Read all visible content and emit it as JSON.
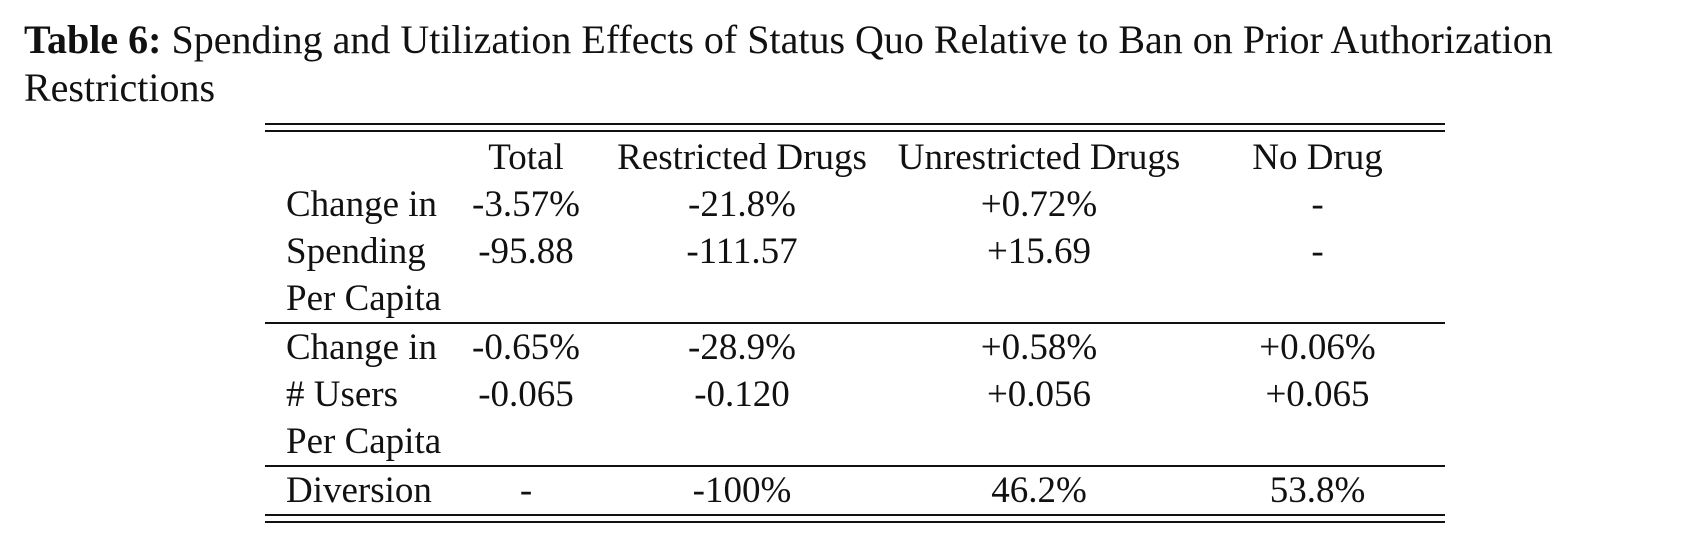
{
  "caption": {
    "label": "Table 6:",
    "text": "Spending and Utilization Effects of Status Quo Relative to Ban on Prior Authorization Restrictions"
  },
  "table": {
    "columns": [
      "",
      "Total",
      "Restricted Drugs",
      "Unrestricted Drugs",
      "No Drug"
    ],
    "rows": [
      {
        "label": "Change in",
        "cells": [
          "-3.57%",
          "-21.8%",
          "+0.72%",
          "-"
        ]
      },
      {
        "label": "Spending",
        "cells": [
          "-95.88",
          "-111.57",
          "+15.69",
          "-"
        ]
      },
      {
        "label": "Per Capita",
        "cells": [
          "",
          "",
          "",
          ""
        ]
      },
      {
        "label": "Change in",
        "cells": [
          "-0.65%",
          "-28.9%",
          "+0.58%",
          "+0.06%"
        ]
      },
      {
        "label": "# Users",
        "cells": [
          "-0.065",
          "-0.120",
          "+0.056",
          "+0.065"
        ]
      },
      {
        "label": "Per Capita",
        "cells": [
          "",
          "",
          "",
          ""
        ]
      },
      {
        "label": "Diversion",
        "cells": [
          "-",
          "-100%",
          "46.2%",
          "53.8%"
        ]
      }
    ]
  }
}
